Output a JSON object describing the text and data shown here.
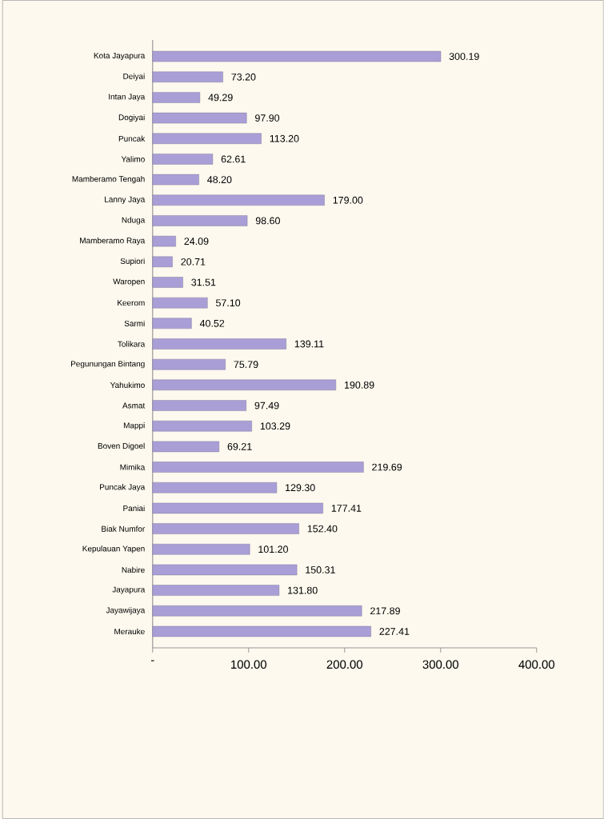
{
  "chart_data": {
    "type": "bar",
    "orientation": "horizontal",
    "categories": [
      "Kota Jayapura",
      "Deiyai",
      "Intan Jaya",
      "Dogiyai",
      "Puncak",
      "Yalimo",
      "Mamberamo Tengah",
      "Lanny Jaya",
      "Nduga",
      "Mamberamo Raya",
      "Supiori",
      "Waropen",
      "Keerom",
      "Sarmi",
      "Tolikara",
      "Pegunungan Bintang",
      "Yahukimo",
      "Asmat",
      "Mappi",
      "Boven Digoel",
      "Mimika",
      "Puncak Jaya",
      "Paniai",
      "Biak Numfor",
      "Kepulauan Yapen",
      "Nabire",
      "Jayapura",
      "Jayawijaya",
      "Merauke"
    ],
    "values": [
      300.19,
      73.2,
      49.29,
      97.9,
      113.2,
      62.61,
      48.2,
      179.0,
      98.6,
      24.09,
      20.71,
      31.51,
      57.1,
      40.52,
      139.11,
      75.79,
      190.89,
      97.49,
      103.29,
      69.21,
      219.69,
      129.3,
      177.41,
      152.4,
      101.2,
      150.31,
      131.8,
      217.89,
      227.41
    ],
    "value_labels": [
      "300.19",
      "73.20",
      "49.29",
      "97.90",
      "113.20",
      "62.61",
      "48.20",
      "179.00",
      "98.60",
      "24.09",
      "20.71",
      "31.51",
      "57.10",
      "40.52",
      "139.11",
      "75.79",
      "190.89",
      "97.49",
      "103.29",
      "69.21",
      "219.69",
      "129.30",
      "177.41",
      "152.40",
      "101.20",
      "150.31",
      "131.80",
      "217.89",
      "227.41"
    ],
    "color": "#a99fd6",
    "xlim": [
      0,
      400
    ],
    "xticks": [
      {
        "value": 0,
        "label": "-"
      },
      {
        "value": 100,
        "label": "100.00"
      },
      {
        "value": 200,
        "label": "200.00"
      },
      {
        "value": 300,
        "label": "300.00"
      },
      {
        "value": 400,
        "label": "400.00"
      }
    ]
  }
}
